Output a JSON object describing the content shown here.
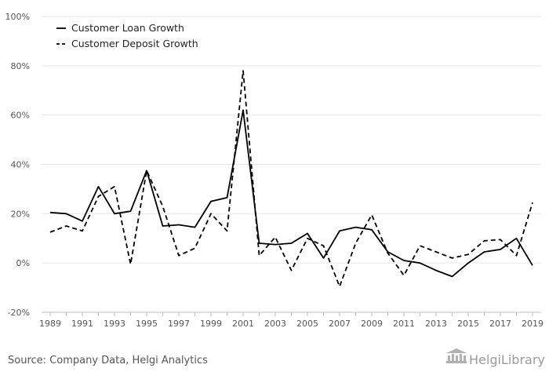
{
  "chart_data": {
    "type": "line",
    "title": "",
    "xlabel": "",
    "ylabel": "",
    "x": [
      1989,
      1990,
      1991,
      1992,
      1993,
      1994,
      1995,
      1996,
      1997,
      1998,
      1999,
      2000,
      2001,
      2002,
      2003,
      2004,
      2005,
      2006,
      2007,
      2008,
      2009,
      2010,
      2011,
      2012,
      2013,
      2014,
      2015,
      2016,
      2017,
      2018,
      2019
    ],
    "x_tick_labels": [
      "1989",
      "1991",
      "1993",
      "1995",
      "1997",
      "1999",
      "2001",
      "2003",
      "2005",
      "2007",
      "2009",
      "2011",
      "2013",
      "2015",
      "2017",
      "2019"
    ],
    "y_ticks": [
      -20,
      0,
      20,
      40,
      60,
      80,
      100
    ],
    "y_tick_labels": [
      "-20%",
      "0%",
      "20%",
      "40%",
      "60%",
      "80%",
      "100%"
    ],
    "ylim": [
      -20,
      100
    ],
    "grid": "horizontal",
    "legend_position": "top-left",
    "series": [
      {
        "name": "Customer Loan Growth",
        "style": "solid",
        "color": "#000000",
        "values": [
          20.5,
          20,
          17,
          31,
          20,
          21,
          37.5,
          15,
          15.5,
          14.5,
          25,
          26.5,
          62,
          8,
          7.5,
          8,
          12,
          2,
          13,
          14.5,
          13.5,
          4.5,
          1,
          0,
          -3,
          -5.5,
          0,
          4.5,
          5.5,
          10,
          -1
        ]
      },
      {
        "name": "Customer Deposit Growth",
        "style": "dashed",
        "color": "#000000",
        "values": [
          12.5,
          15,
          13,
          27,
          31,
          -0.5,
          37.5,
          23,
          3,
          6,
          20,
          13,
          78,
          3,
          10.5,
          -3,
          10,
          7,
          -9.5,
          8,
          19.5,
          4,
          -5,
          7,
          4.5,
          2,
          3.5,
          9,
          9.5,
          3,
          24.5
        ]
      }
    ]
  },
  "footer": {
    "source": "Source: Company Data, Helgi Analytics",
    "logo_text": "HelgiLibrary"
  }
}
